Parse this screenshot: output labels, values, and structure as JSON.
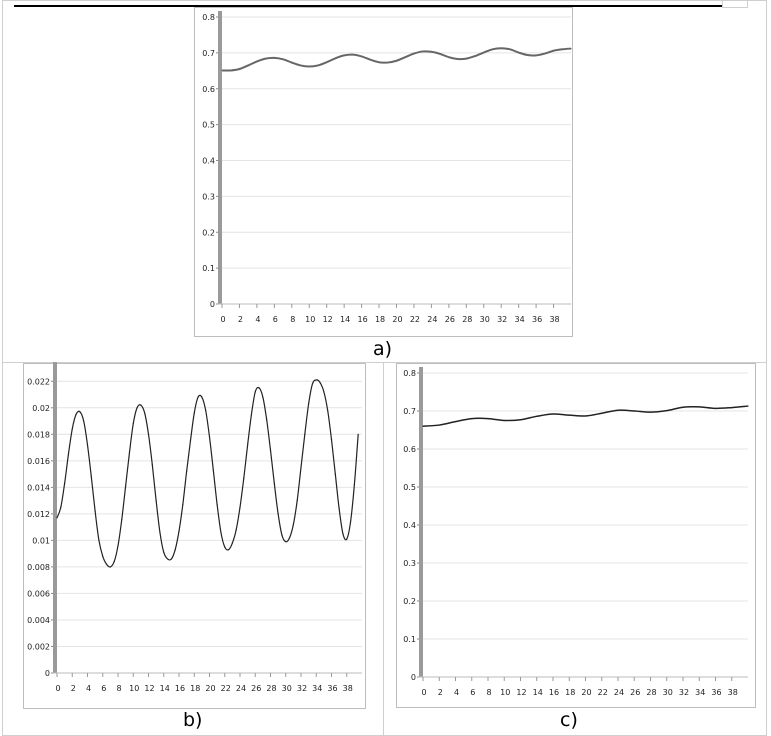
{
  "colors": {
    "series": "#222222",
    "series_a": "#666666",
    "grid": "#e4e4e4",
    "axis_bar": "#9a9a9a"
  },
  "labels": {
    "a": "a)",
    "b": "b)",
    "c": "c)"
  },
  "chart_data": [
    {
      "id": "a",
      "type": "line",
      "xlim": [
        0,
        40
      ],
      "ylim": [
        0,
        0.8
      ],
      "xticks": [
        0,
        2,
        4,
        6,
        8,
        10,
        12,
        14,
        16,
        18,
        20,
        22,
        24,
        26,
        28,
        30,
        32,
        34,
        36,
        38
      ],
      "yticks": [
        0,
        0.1,
        0.2,
        0.3,
        0.4,
        0.5,
        0.6,
        0.7,
        0.8
      ],
      "x": [
        0,
        1,
        2,
        3,
        4,
        5,
        6,
        7,
        8,
        9,
        10,
        11,
        12,
        13,
        14,
        15,
        16,
        17,
        18,
        19,
        20,
        21,
        22,
        23,
        24,
        25,
        26,
        27,
        28,
        29,
        30,
        31,
        32,
        33,
        34,
        35,
        36,
        37,
        38,
        39,
        40
      ],
      "y": [
        0.651,
        0.651,
        0.655,
        0.665,
        0.676,
        0.684,
        0.686,
        0.682,
        0.673,
        0.665,
        0.662,
        0.665,
        0.674,
        0.685,
        0.693,
        0.695,
        0.69,
        0.681,
        0.674,
        0.673,
        0.678,
        0.688,
        0.698,
        0.704,
        0.703,
        0.697,
        0.688,
        0.683,
        0.684,
        0.691,
        0.701,
        0.71,
        0.713,
        0.71,
        0.701,
        0.694,
        0.693,
        0.698,
        0.706,
        0.71,
        0.712
      ]
    },
    {
      "id": "b",
      "type": "line",
      "xlim": [
        0,
        40
      ],
      "ylim": [
        0,
        0.023
      ],
      "xticks": [
        0,
        2,
        4,
        6,
        8,
        10,
        12,
        14,
        16,
        18,
        20,
        22,
        24,
        26,
        28,
        30,
        32,
        34,
        36,
        38
      ],
      "yticks": [
        0,
        0.002,
        0.004,
        0.006,
        0.008,
        0.01,
        0.012,
        0.014,
        0.016,
        0.018,
        0.02,
        0.022
      ],
      "y_tick_labels": [
        "0",
        "0.002",
        "0.004",
        "0.006",
        "0.008",
        "0.01",
        "0.012",
        "0.014",
        "0.016",
        "0.018",
        "0.02",
        "0.022"
      ],
      "x": [
        0,
        0.5,
        1,
        1.5,
        2,
        2.5,
        3,
        3.5,
        4,
        4.5,
        5,
        5.5,
        6,
        6.5,
        7,
        7.5,
        8,
        8.5,
        9,
        9.5,
        10,
        10.5,
        11,
        11.5,
        12,
        12.5,
        13,
        13.5,
        14,
        14.5,
        15,
        15.5,
        16,
        16.5,
        17,
        17.5,
        18,
        18.5,
        19,
        19.5,
        20,
        20.5,
        21,
        21.5,
        22,
        22.5,
        23,
        23.5,
        24,
        24.5,
        25,
        25.5,
        26,
        26.5,
        27,
        27.5,
        28,
        28.5,
        29,
        29.5,
        30,
        30.5,
        31,
        31.5,
        32,
        32.5,
        33,
        33.5,
        34,
        34.5,
        35,
        35.5,
        36,
        36.5,
        37,
        37.5,
        38,
        38.5,
        39,
        39.5
      ],
      "y": [
        0.0117,
        0.0125,
        0.0143,
        0.0165,
        0.0184,
        0.0195,
        0.0197,
        0.019,
        0.0172,
        0.0148,
        0.0122,
        0.01,
        0.0088,
        0.0082,
        0.008,
        0.0084,
        0.0096,
        0.0116,
        0.0141,
        0.0166,
        0.0188,
        0.02,
        0.0202,
        0.0196,
        0.018,
        0.0157,
        0.013,
        0.0106,
        0.0091,
        0.0086,
        0.0086,
        0.0093,
        0.0107,
        0.0127,
        0.0152,
        0.0175,
        0.0196,
        0.0208,
        0.0208,
        0.0198,
        0.0178,
        0.0153,
        0.0127,
        0.0106,
        0.0095,
        0.0093,
        0.0098,
        0.0108,
        0.0125,
        0.0147,
        0.0172,
        0.0195,
        0.0212,
        0.0215,
        0.0208,
        0.0191,
        0.0168,
        0.0143,
        0.012,
        0.0104,
        0.0099,
        0.0102,
        0.0112,
        0.013,
        0.0155,
        0.018,
        0.0203,
        0.0218,
        0.0221,
        0.0219,
        0.0212,
        0.0198,
        0.0176,
        0.015,
        0.0124,
        0.0105,
        0.0101,
        0.0114,
        0.0142,
        0.018
      ]
    },
    {
      "id": "c",
      "type": "line",
      "xlim": [
        0,
        40
      ],
      "ylim": [
        0,
        0.8
      ],
      "xticks": [
        0,
        2,
        4,
        6,
        8,
        10,
        12,
        14,
        16,
        18,
        20,
        22,
        24,
        26,
        28,
        30,
        32,
        34,
        36,
        38
      ],
      "yticks": [
        0,
        0.1,
        0.2,
        0.3,
        0.4,
        0.5,
        0.6,
        0.7,
        0.8
      ],
      "x": [
        0,
        2,
        4,
        6,
        8,
        10,
        12,
        14,
        16,
        18,
        20,
        22,
        24,
        26,
        28,
        30,
        32,
        34,
        36,
        38,
        40
      ],
      "y": [
        0.66,
        0.663,
        0.672,
        0.68,
        0.68,
        0.675,
        0.677,
        0.686,
        0.692,
        0.689,
        0.687,
        0.694,
        0.702,
        0.7,
        0.697,
        0.701,
        0.71,
        0.711,
        0.707,
        0.709,
        0.713
      ]
    }
  ]
}
